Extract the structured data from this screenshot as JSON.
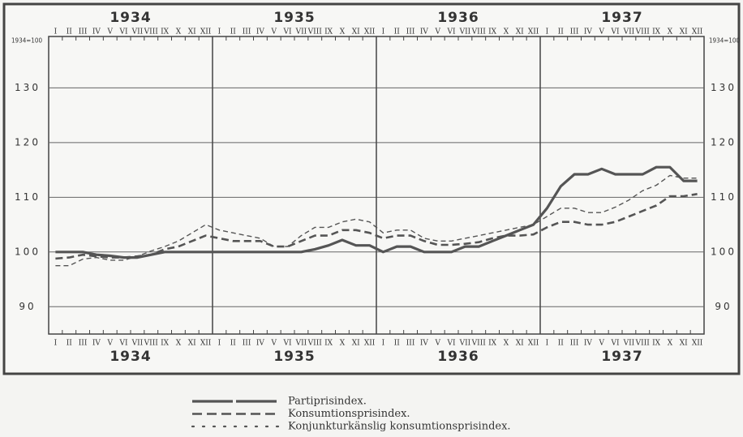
{
  "chart_data": {
    "type": "line",
    "axis_label": "1934=100",
    "years": [
      "1934",
      "1935",
      "1936",
      "1937"
    ],
    "categories": [
      "I",
      "II",
      "III",
      "IV",
      "V",
      "VI",
      "VII",
      "VIII",
      "IX",
      "X",
      "XI",
      "XII",
      "I",
      "II",
      "III",
      "IV",
      "V",
      "VI",
      "VII",
      "VIII",
      "IX",
      "X",
      "XI",
      "XII",
      "I",
      "II",
      "III",
      "IV",
      "V",
      "VI",
      "VII",
      "VIII",
      "IX",
      "X",
      "XI",
      "XII",
      "I",
      "II",
      "III",
      "IV",
      "V",
      "VI",
      "VII",
      "VIII",
      "IX",
      "X",
      "XI",
      "XII"
    ],
    "ylim": [
      85,
      139.4
    ],
    "yticks": [
      90,
      100,
      110,
      120,
      130
    ],
    "grid": true,
    "series": [
      {
        "name": "Partiprisindex.",
        "color": "#555555",
        "values": [
          100,
          100,
          100,
          99.5,
          99.3,
          99,
          99,
          99.5,
          100,
          100,
          100,
          100,
          100,
          100,
          100,
          100,
          100,
          100,
          100,
          100.5,
          101.2,
          102.2,
          101.2,
          101.2,
          100,
          101,
          101,
          100,
          100,
          100,
          101,
          101,
          102,
          103,
          104,
          105,
          108,
          112,
          114.2,
          114.2,
          115.2,
          114.2,
          114.2,
          114.2,
          115.5,
          115.5,
          113,
          113
        ]
      },
      {
        "name": "Konsumtionsprisindex.",
        "color": "#555555",
        "values": [
          98.8,
          99,
          99.5,
          99.2,
          99,
          99,
          99.2,
          99.5,
          100.5,
          101,
          102,
          103,
          102.5,
          102,
          102,
          102,
          101,
          101,
          102,
          103,
          103,
          104,
          104,
          103.5,
          102.5,
          103,
          103,
          102,
          101.3,
          101.3,
          101.5,
          101.8,
          102.5,
          103,
          103,
          103.2,
          104.5,
          105.5,
          105.5,
          105,
          105,
          105.5,
          106.5,
          107.5,
          108.5,
          110.2,
          110.2,
          110.6
        ]
      },
      {
        "name": "Konjunkturkänslig konsumtionsprisindex.",
        "color": "#555555",
        "values": [
          97.5,
          97.5,
          98.7,
          99,
          98.5,
          98.5,
          99.2,
          100.2,
          101,
          102,
          103.5,
          105,
          104,
          103.5,
          103,
          102.5,
          101,
          101,
          103,
          104.5,
          104.5,
          105.5,
          106,
          105.5,
          103.5,
          104,
          104,
          102.5,
          102,
          102,
          102.5,
          103,
          103.5,
          104,
          104.5,
          105,
          106.5,
          108,
          108,
          107.2,
          107.2,
          108.2,
          109.5,
          111.2,
          112.2,
          114,
          113.5,
          113.5
        ]
      }
    ]
  }
}
